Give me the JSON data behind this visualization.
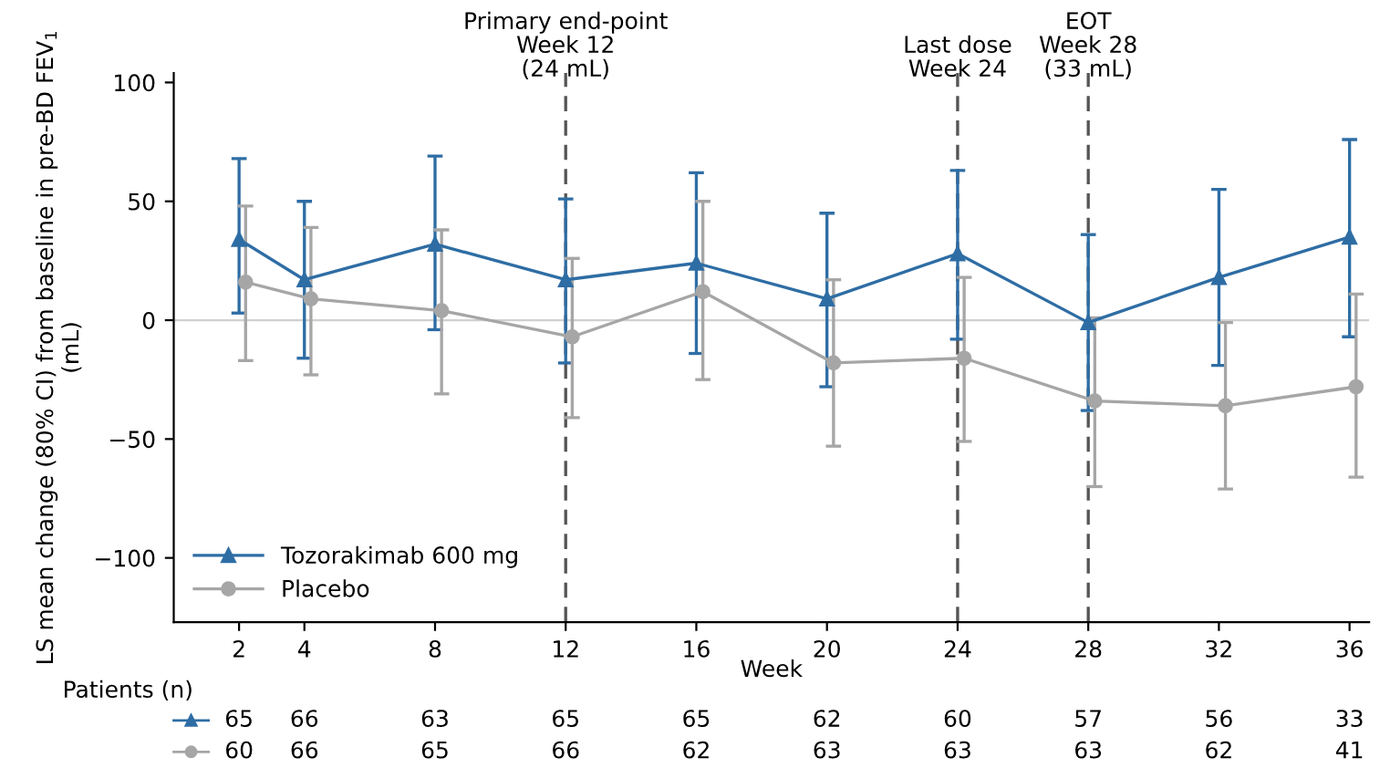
{
  "chart_data": {
    "type": "line",
    "xlabel": "Week",
    "ylabel": "LS mean change (80% CI) from baseline in pre-BD FEV$_{1}$ (mL)",
    "x": [
      2,
      4,
      8,
      12,
      16,
      20,
      24,
      28,
      32,
      36
    ],
    "xlim": [
      0,
      36.6
    ],
    "xticks": [
      2,
      4,
      8,
      12,
      16,
      20,
      24,
      28,
      32,
      36
    ],
    "ylim": [
      -127,
      104
    ],
    "yticks": [
      {
        "value": -100,
        "label": "−100"
      },
      {
        "value": -50,
        "label": "−50"
      },
      0,
      50,
      100
    ],
    "legend": "bottom left",
    "grid": false,
    "series": [
      {
        "name": "Tozorakimab 600 mg",
        "color": "#2e6da4",
        "marker": "triangle",
        "values": [
          34,
          17,
          32,
          17,
          24,
          9,
          28,
          -1,
          18,
          35
        ],
        "errors": [
          [
            3,
            68
          ],
          [
            -16,
            50
          ],
          [
            -4,
            69
          ],
          [
            -18,
            51
          ],
          [
            -14,
            62
          ],
          [
            -28,
            45
          ],
          [
            -8,
            63
          ],
          [
            -38,
            36
          ],
          [
            -19,
            55
          ],
          [
            -7,
            76
          ]
        ]
      },
      {
        "name": "Placebo",
        "color": "#a6a6a6",
        "marker": "circle",
        "x": [
          2.2,
          4.2,
          8.2,
          12.2,
          16.2,
          20.2,
          24.2,
          28.2,
          32.2,
          36.2
        ],
        "values": [
          16,
          9,
          4,
          -7,
          12,
          -18,
          -16,
          -34,
          -36,
          -28
        ],
        "errors": [
          [
            -17,
            48
          ],
          [
            -23,
            39
          ],
          [
            -31,
            38
          ],
          [
            -41,
            26
          ],
          [
            -25,
            50
          ],
          [
            -53,
            17
          ],
          [
            -51,
            18
          ],
          [
            -70,
            1
          ],
          [
            -71,
            -1
          ],
          [
            -66,
            11
          ]
        ]
      }
    ],
    "ref_lines": [
      {
        "axis": "y",
        "value": 0,
        "label": null,
        "color": "#d0d0d0",
        "line_style": "solid"
      },
      {
        "axis": "x",
        "value": 12,
        "label": "Primary end-point\nWeek 12\n(24 mL)",
        "color": "#555555",
        "line_style": "dashed"
      },
      {
        "axis": "x",
        "value": 24,
        "label": "Last dose\nWeek 24",
        "color": "#555555",
        "line_style": "dashed"
      },
      {
        "axis": "x",
        "value": 28,
        "label": "EOT\nWeek 28\n(33 mL)",
        "color": "#555555",
        "line_style": "dashed"
      }
    ],
    "annotations": [
      "Patients (n)",
      "65",
      "66",
      "63",
      "65",
      "65",
      "62",
      "60",
      "57",
      "56",
      "33",
      "60",
      "66",
      "65",
      "66",
      "62",
      "63",
      "63",
      "63",
      "62",
      "41"
    ]
  }
}
